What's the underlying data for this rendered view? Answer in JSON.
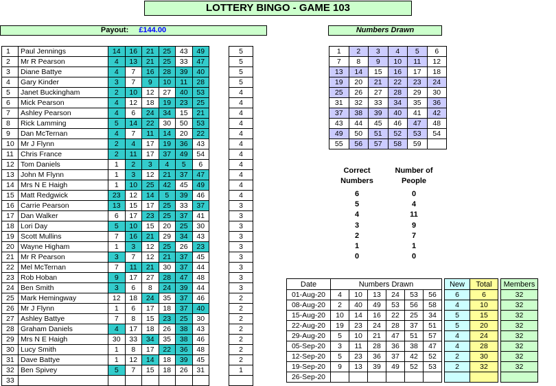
{
  "title": "LOTTERY BINGO - GAME 103",
  "payout": {
    "label": "Payout:",
    "amount": "£144.00"
  },
  "numbers_drawn_title": "Numbers Drawn",
  "colors": {
    "hit": "#33cccc",
    "drawn_hit": "#ccccff",
    "header_green": "#ccffcc"
  },
  "players": [
    {
      "i": "1",
      "name": "Paul Jennings",
      "nums": [
        "14",
        "16",
        "21",
        "25",
        "43",
        "49"
      ],
      "hits": [
        1,
        1,
        1,
        1,
        0,
        1
      ],
      "score": "5"
    },
    {
      "i": "2",
      "name": "Mr R Pearson",
      "nums": [
        "4",
        "13",
        "21",
        "25",
        "33",
        "47"
      ],
      "hits": [
        1,
        1,
        1,
        1,
        0,
        1
      ],
      "score": "5"
    },
    {
      "i": "3",
      "name": "Diane Battye",
      "nums": [
        "4",
        "7",
        "16",
        "28",
        "39",
        "40"
      ],
      "hits": [
        1,
        0,
        1,
        1,
        1,
        1
      ],
      "score": "5"
    },
    {
      "i": "4",
      "name": "Gary Kinder",
      "nums": [
        "3",
        "7",
        "9",
        "10",
        "11",
        "28"
      ],
      "hits": [
        1,
        0,
        1,
        1,
        1,
        1
      ],
      "score": "5"
    },
    {
      "i": "5",
      "name": "Janet Buckingham",
      "nums": [
        "2",
        "10",
        "12",
        "27",
        "40",
        "53"
      ],
      "hits": [
        1,
        1,
        0,
        0,
        1,
        1
      ],
      "score": "4"
    },
    {
      "i": "6",
      "name": "Mick Pearson",
      "nums": [
        "4",
        "12",
        "18",
        "19",
        "23",
        "25"
      ],
      "hits": [
        1,
        0,
        0,
        1,
        1,
        1
      ],
      "score": "4"
    },
    {
      "i": "7",
      "name": "Ashley Pearson",
      "nums": [
        "4",
        "6",
        "24",
        "34",
        "15",
        "21"
      ],
      "hits": [
        1,
        0,
        1,
        1,
        0,
        1
      ],
      "score": "4"
    },
    {
      "i": "8",
      "name": "Rick Lamming",
      "nums": [
        "5",
        "14",
        "22",
        "30",
        "50",
        "53"
      ],
      "hits": [
        1,
        1,
        1,
        0,
        0,
        1
      ],
      "score": "4"
    },
    {
      "i": "9",
      "name": "Dan McTernan",
      "nums": [
        "4",
        "7",
        "11",
        "14",
        "20",
        "22"
      ],
      "hits": [
        1,
        0,
        1,
        1,
        0,
        1
      ],
      "score": "4"
    },
    {
      "i": "10",
      "name": "Mr J Flynn",
      "nums": [
        "2",
        "4",
        "17",
        "19",
        "36",
        "43"
      ],
      "hits": [
        1,
        1,
        0,
        1,
        1,
        0
      ],
      "score": "4"
    },
    {
      "i": "11",
      "name": "Chris France",
      "nums": [
        "2",
        "11",
        "17",
        "37",
        "49",
        "54"
      ],
      "hits": [
        1,
        1,
        0,
        1,
        1,
        0
      ],
      "score": "4"
    },
    {
      "i": "12",
      "name": "Tom Daniels",
      "nums": [
        "1",
        "2",
        "3",
        "4",
        "5",
        "6"
      ],
      "hits": [
        0,
        1,
        1,
        1,
        1,
        0
      ],
      "score": "4"
    },
    {
      "i": "13",
      "name": "John M Flynn",
      "nums": [
        "1",
        "3",
        "12",
        "21",
        "37",
        "47"
      ],
      "hits": [
        0,
        1,
        0,
        1,
        1,
        1
      ],
      "score": "4"
    },
    {
      "i": "14",
      "name": "Mrs N E Haigh",
      "nums": [
        "1",
        "10",
        "25",
        "42",
        "45",
        "49"
      ],
      "hits": [
        0,
        1,
        1,
        1,
        0,
        1
      ],
      "score": "4"
    },
    {
      "i": "15",
      "name": "Matt Redgwick",
      "nums": [
        "23",
        "12",
        "14",
        "5",
        "39",
        "46"
      ],
      "hits": [
        1,
        0,
        1,
        1,
        1,
        0
      ],
      "score": "4"
    },
    {
      "i": "16",
      "name": "Carrie Pearson",
      "nums": [
        "13",
        "15",
        "17",
        "25",
        "33",
        "37"
      ],
      "hits": [
        1,
        0,
        0,
        1,
        0,
        1
      ],
      "score": "3"
    },
    {
      "i": "17",
      "name": "Dan Walker",
      "nums": [
        "6",
        "17",
        "23",
        "25",
        "37",
        "41"
      ],
      "hits": [
        0,
        0,
        1,
        1,
        1,
        0
      ],
      "score": "3"
    },
    {
      "i": "18",
      "name": "Lori Day",
      "nums": [
        "5",
        "10",
        "15",
        "20",
        "25",
        "30"
      ],
      "hits": [
        1,
        1,
        0,
        0,
        1,
        0
      ],
      "score": "3"
    },
    {
      "i": "19",
      "name": "Scott Mullins",
      "nums": [
        "7",
        "16",
        "21",
        "29",
        "34",
        "43"
      ],
      "hits": [
        0,
        1,
        1,
        0,
        1,
        0
      ],
      "score": "3"
    },
    {
      "i": "20",
      "name": "Wayne Higham",
      "nums": [
        "1",
        "3",
        "12",
        "25",
        "26",
        "23"
      ],
      "hits": [
        0,
        1,
        0,
        1,
        0,
        1
      ],
      "score": "3"
    },
    {
      "i": "21",
      "name": "Mr R Pearson",
      "nums": [
        "3",
        "7",
        "12",
        "21",
        "37",
        "45"
      ],
      "hits": [
        1,
        0,
        0,
        1,
        1,
        0
      ],
      "score": "3"
    },
    {
      "i": "22",
      "name": "Mel McTernan",
      "nums": [
        "7",
        "11",
        "21",
        "30",
        "37",
        "44"
      ],
      "hits": [
        0,
        1,
        1,
        0,
        1,
        0
      ],
      "score": "3"
    },
    {
      "i": "23",
      "name": "Rob Hoban",
      "nums": [
        "9",
        "17",
        "27",
        "28",
        "47",
        "48"
      ],
      "hits": [
        1,
        0,
        0,
        1,
        1,
        0
      ],
      "score": "3"
    },
    {
      "i": "24",
      "name": "Ben Smith",
      "nums": [
        "3",
        "6",
        "8",
        "24",
        "39",
        "44"
      ],
      "hits": [
        1,
        0,
        0,
        1,
        1,
        0
      ],
      "score": "3"
    },
    {
      "i": "25",
      "name": "Mark Hemingway",
      "nums": [
        "12",
        "18",
        "24",
        "35",
        "37",
        "46"
      ],
      "hits": [
        0,
        0,
        1,
        0,
        1,
        0
      ],
      "score": "2"
    },
    {
      "i": "26",
      "name": "Mr J Flynn",
      "nums": [
        "1",
        "6",
        "17",
        "18",
        "37",
        "40"
      ],
      "hits": [
        0,
        0,
        0,
        0,
        1,
        1
      ],
      "score": "2"
    },
    {
      "i": "27",
      "name": "Ashley Battye",
      "nums": [
        "7",
        "8",
        "15",
        "23",
        "25",
        "30"
      ],
      "hits": [
        0,
        0,
        0,
        1,
        1,
        0
      ],
      "score": "2"
    },
    {
      "i": "28",
      "name": "Graham Daniels",
      "nums": [
        "4",
        "17",
        "18",
        "26",
        "38",
        "43"
      ],
      "hits": [
        1,
        0,
        0,
        0,
        1,
        0
      ],
      "score": "2"
    },
    {
      "i": "29",
      "name": "Mrs N E Haigh",
      "nums": [
        "30",
        "33",
        "34",
        "35",
        "38",
        "46"
      ],
      "hits": [
        0,
        0,
        1,
        0,
        1,
        0
      ],
      "score": "2"
    },
    {
      "i": "30",
      "name": "Lucy Smith",
      "nums": [
        "1",
        "8",
        "17",
        "22",
        "36",
        "48"
      ],
      "hits": [
        0,
        0,
        0,
        1,
        1,
        0
      ],
      "score": "2"
    },
    {
      "i": "31",
      "name": "Dave Battye",
      "nums": [
        "1",
        "12",
        "14",
        "18",
        "39",
        "45"
      ],
      "hits": [
        0,
        0,
        1,
        0,
        1,
        0
      ],
      "score": "2"
    },
    {
      "i": "32",
      "name": "Ben Spivey",
      "nums": [
        "5",
        "7",
        "15",
        "18",
        "26",
        "31"
      ],
      "hits": [
        1,
        0,
        0,
        0,
        0,
        0
      ],
      "score": "1"
    },
    {
      "i": "33",
      "name": "",
      "nums": [
        "",
        "",
        "",
        "",
        "",
        ""
      ],
      "hits": [
        0,
        0,
        0,
        0,
        0,
        0
      ],
      "score": ""
    }
  ],
  "drawn_grid": [
    [
      {
        "v": "1",
        "h": 0
      },
      {
        "v": "2",
        "h": 1
      },
      {
        "v": "3",
        "h": 1
      },
      {
        "v": "4",
        "h": 1
      },
      {
        "v": "5",
        "h": 1
      },
      {
        "v": "6",
        "h": 0
      }
    ],
    [
      {
        "v": "7",
        "h": 0
      },
      {
        "v": "8",
        "h": 0
      },
      {
        "v": "9",
        "h": 1
      },
      {
        "v": "10",
        "h": 1
      },
      {
        "v": "11",
        "h": 1
      },
      {
        "v": "12",
        "h": 0
      }
    ],
    [
      {
        "v": "13",
        "h": 1
      },
      {
        "v": "14",
        "h": 1
      },
      {
        "v": "15",
        "h": 0
      },
      {
        "v": "16",
        "h": 1
      },
      {
        "v": "17",
        "h": 0
      },
      {
        "v": "18",
        "h": 0
      }
    ],
    [
      {
        "v": "19",
        "h": 1
      },
      {
        "v": "20",
        "h": 0
      },
      {
        "v": "21",
        "h": 1
      },
      {
        "v": "22",
        "h": 1
      },
      {
        "v": "23",
        "h": 1
      },
      {
        "v": "24",
        "h": 1
      }
    ],
    [
      {
        "v": "25",
        "h": 1
      },
      {
        "v": "26",
        "h": 0
      },
      {
        "v": "27",
        "h": 0
      },
      {
        "v": "28",
        "h": 1
      },
      {
        "v": "29",
        "h": 0
      },
      {
        "v": "30",
        "h": 0
      }
    ],
    [
      {
        "v": "31",
        "h": 0
      },
      {
        "v": "32",
        "h": 0
      },
      {
        "v": "33",
        "h": 0
      },
      {
        "v": "34",
        "h": 1
      },
      {
        "v": "35",
        "h": 0
      },
      {
        "v": "36",
        "h": 1
      }
    ],
    [
      {
        "v": "37",
        "h": 1
      },
      {
        "v": "38",
        "h": 1
      },
      {
        "v": "39",
        "h": 1
      },
      {
        "v": "40",
        "h": 1
      },
      {
        "v": "41",
        "h": 0
      },
      {
        "v": "42",
        "h": 1
      }
    ],
    [
      {
        "v": "43",
        "h": 0
      },
      {
        "v": "44",
        "h": 0
      },
      {
        "v": "45",
        "h": 0
      },
      {
        "v": "46",
        "h": 0
      },
      {
        "v": "47",
        "h": 1
      },
      {
        "v": "48",
        "h": 0
      }
    ],
    [
      {
        "v": "49",
        "h": 1
      },
      {
        "v": "50",
        "h": 0
      },
      {
        "v": "51",
        "h": 1
      },
      {
        "v": "52",
        "h": 1
      },
      {
        "v": "53",
        "h": 1
      },
      {
        "v": "54",
        "h": 0
      }
    ],
    [
      {
        "v": "55",
        "h": 0
      },
      {
        "v": "56",
        "h": 1
      },
      {
        "v": "57",
        "h": 1
      },
      {
        "v": "58",
        "h": 1
      },
      {
        "v": "59",
        "h": 0
      },
      {
        "v": "",
        "h": -1
      }
    ]
  ],
  "summary": {
    "col1_header": [
      "Correct",
      "Numbers"
    ],
    "col2_header": [
      "Number of",
      "People"
    ],
    "rows": [
      {
        "correct": "6",
        "people": "0"
      },
      {
        "correct": "5",
        "people": "4"
      },
      {
        "correct": "4",
        "people": "11"
      },
      {
        "correct": "3",
        "people": "9"
      },
      {
        "correct": "2",
        "people": "7"
      },
      {
        "correct": "1",
        "people": "1"
      },
      {
        "correct": "0",
        "people": "0"
      }
    ]
  },
  "history": {
    "headers": {
      "date": "Date",
      "numbers": "Numbers Drawn",
      "new": "New",
      "total": "Total",
      "members": "Members"
    },
    "rows": [
      {
        "date": "01-Aug-20",
        "nums": [
          "4",
          "10",
          "13",
          "24",
          "53",
          "56"
        ],
        "new": "6",
        "total": "6",
        "members": "32"
      },
      {
        "date": "08-Aug-20",
        "nums": [
          "2",
          "40",
          "49",
          "53",
          "56",
          "58"
        ],
        "new": "4",
        "total": "10",
        "members": "32"
      },
      {
        "date": "15-Aug-20",
        "nums": [
          "10",
          "14",
          "16",
          "22",
          "25",
          "34"
        ],
        "new": "5",
        "total": "15",
        "members": "32"
      },
      {
        "date": "22-Aug-20",
        "nums": [
          "19",
          "23",
          "24",
          "28",
          "37",
          "51"
        ],
        "new": "5",
        "total": "20",
        "members": "32"
      },
      {
        "date": "29-Aug-20",
        "nums": [
          "5",
          "10",
          "21",
          "47",
          "51",
          "57"
        ],
        "new": "4",
        "total": "24",
        "members": "32"
      },
      {
        "date": "05-Sep-20",
        "nums": [
          "3",
          "11",
          "28",
          "36",
          "38",
          "47"
        ],
        "new": "4",
        "total": "28",
        "members": "32"
      },
      {
        "date": "12-Sep-20",
        "nums": [
          "5",
          "23",
          "36",
          "37",
          "42",
          "52"
        ],
        "new": "2",
        "total": "30",
        "members": "32"
      },
      {
        "date": "19-Sep-20",
        "nums": [
          "9",
          "13",
          "39",
          "49",
          "52",
          "53"
        ],
        "new": "2",
        "total": "32",
        "members": "32"
      },
      {
        "date": "26-Sep-20",
        "nums": [
          "",
          "",
          "",
          "",
          "",
          ""
        ],
        "new": "",
        "total": "",
        "members": ""
      }
    ]
  }
}
